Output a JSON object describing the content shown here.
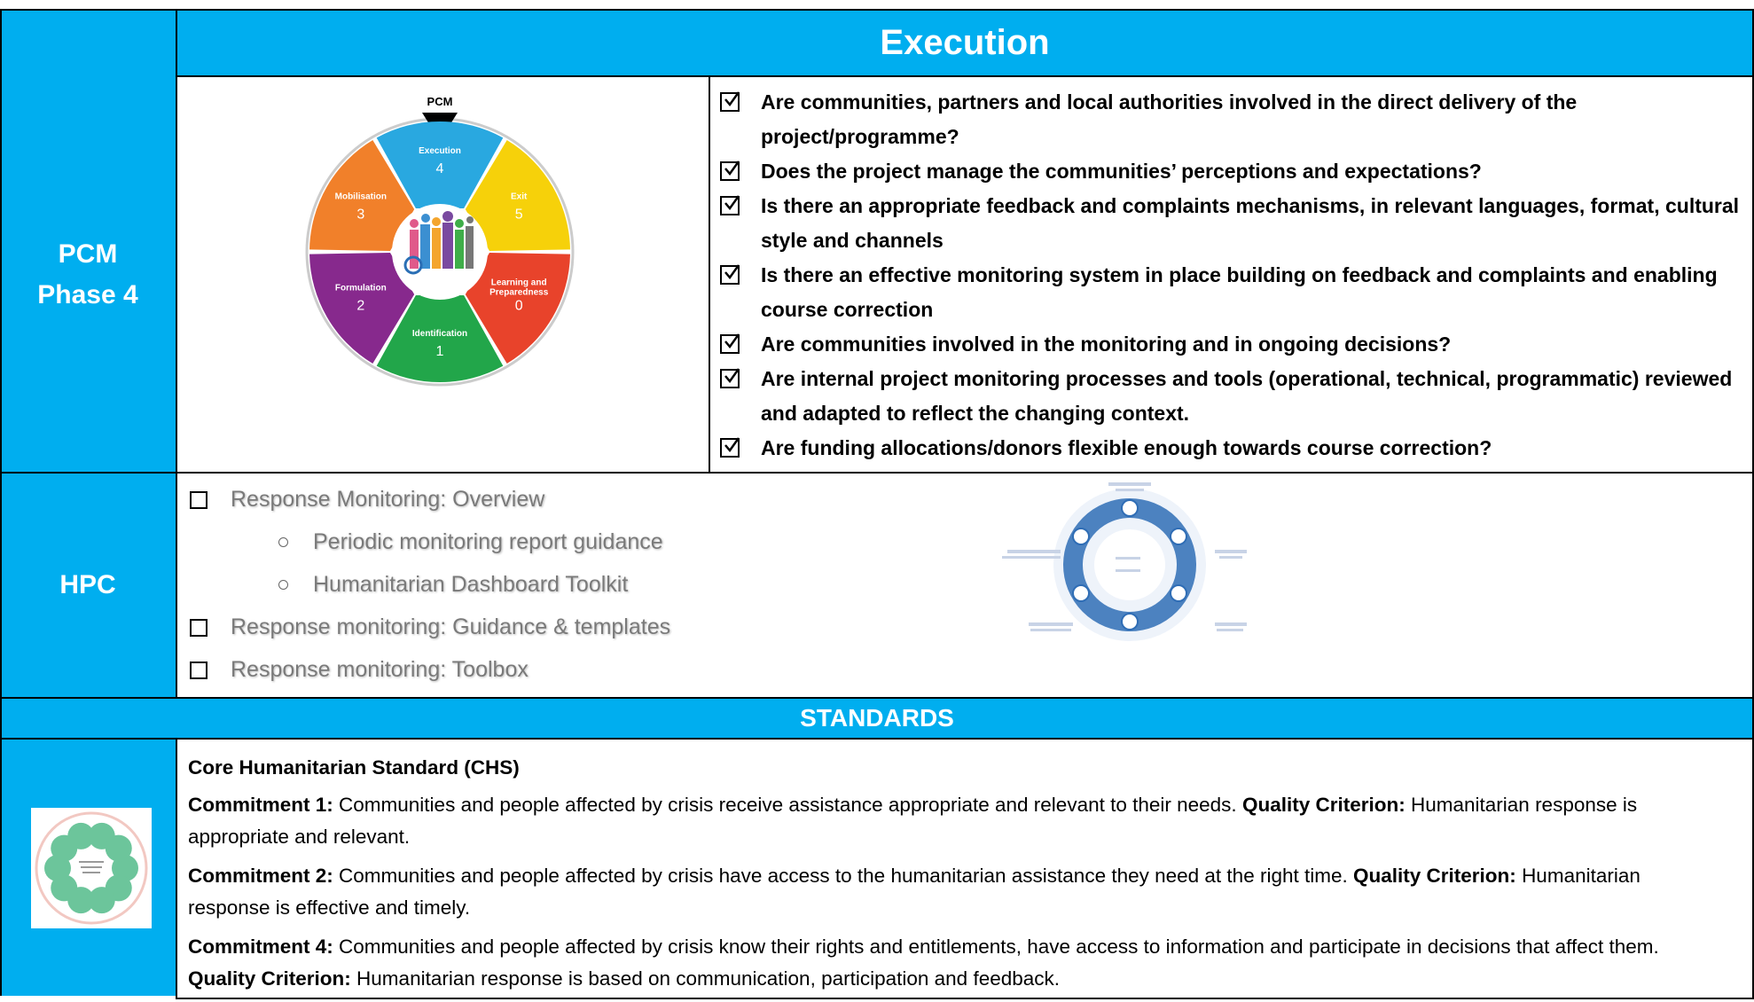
{
  "header": {
    "title": "Execution"
  },
  "pcm": {
    "label": [
      "PCM",
      "Phase 4"
    ],
    "wheel": {
      "pointer": "PCM",
      "segments": [
        {
          "name": "Execution",
          "number": 4,
          "color": "#29a8e0"
        },
        {
          "name": "Exit",
          "number": 5,
          "color": "#f6d10a"
        },
        {
          "name": "Learning and Preparedness",
          "number": 0,
          "color": "#e8432b"
        },
        {
          "name": "Identification",
          "number": 1,
          "color": "#22a64a"
        },
        {
          "name": "Formulation",
          "number": 2,
          "color": "#87298d"
        },
        {
          "name": "Mobilisation",
          "number": 3,
          "color": "#f1802a"
        }
      ]
    }
  },
  "questions": [
    "Are communities, partners and local authorities involved in the direct delivery of the project/programme?",
    "Does the project manage the communities’ perceptions and expectations?",
    "Is there an appropriate feedback and complaints mechanisms, in relevant languages, format, cultural style and channels",
    "Is there an effective monitoring system in place building on feedback and complaints and enabling course correction",
    "Are communities involved in the monitoring and in ongoing decisions?",
    "Are internal project monitoring processes and tools (operational, technical, programmatic) reviewed and adapted to reflect the changing context.",
    "Are funding allocations/donors flexible enough towards course correction?"
  ],
  "hpc": {
    "label": "HPC",
    "items": [
      {
        "text": "Response Monitoring: Overview",
        "subitems": [
          "Periodic monitoring report guidance",
          "Humanitarian Dashboard Toolkit"
        ]
      },
      {
        "text": "Response monitoring: Guidance & templates",
        "subitems": []
      },
      {
        "text": "Response monitoring: Toolbox",
        "subitems": []
      }
    ]
  },
  "standards": {
    "title": "STANDARDS",
    "chs": {
      "title": "Core Humanitarian Standard (CHS)",
      "commitments": [
        {
          "label": "Commitment 1:",
          "text": "Communities and people affected by crisis receive assistance appropriate and relevant to their needs.",
          "criterion_label": "Quality Criterion:",
          "criterion": "Humanitarian response is appropriate and relevant."
        },
        {
          "label": "Commitment 2:",
          "text": "Communities and people affected by crisis have access to the humanitarian assistance they need at the right time.",
          "criterion_label": "Quality Criterion:",
          "criterion": "Humanitarian response is effective and timely."
        },
        {
          "label": "Commitment 4:",
          "text": "Communities and people affected by crisis know their rights and entitlements, have access to information and participate in decisions that affect them.",
          "criterion_label": "Quality Criterion:",
          "criterion": "Humanitarian response is based on communication, participation and feedback."
        }
      ]
    }
  }
}
